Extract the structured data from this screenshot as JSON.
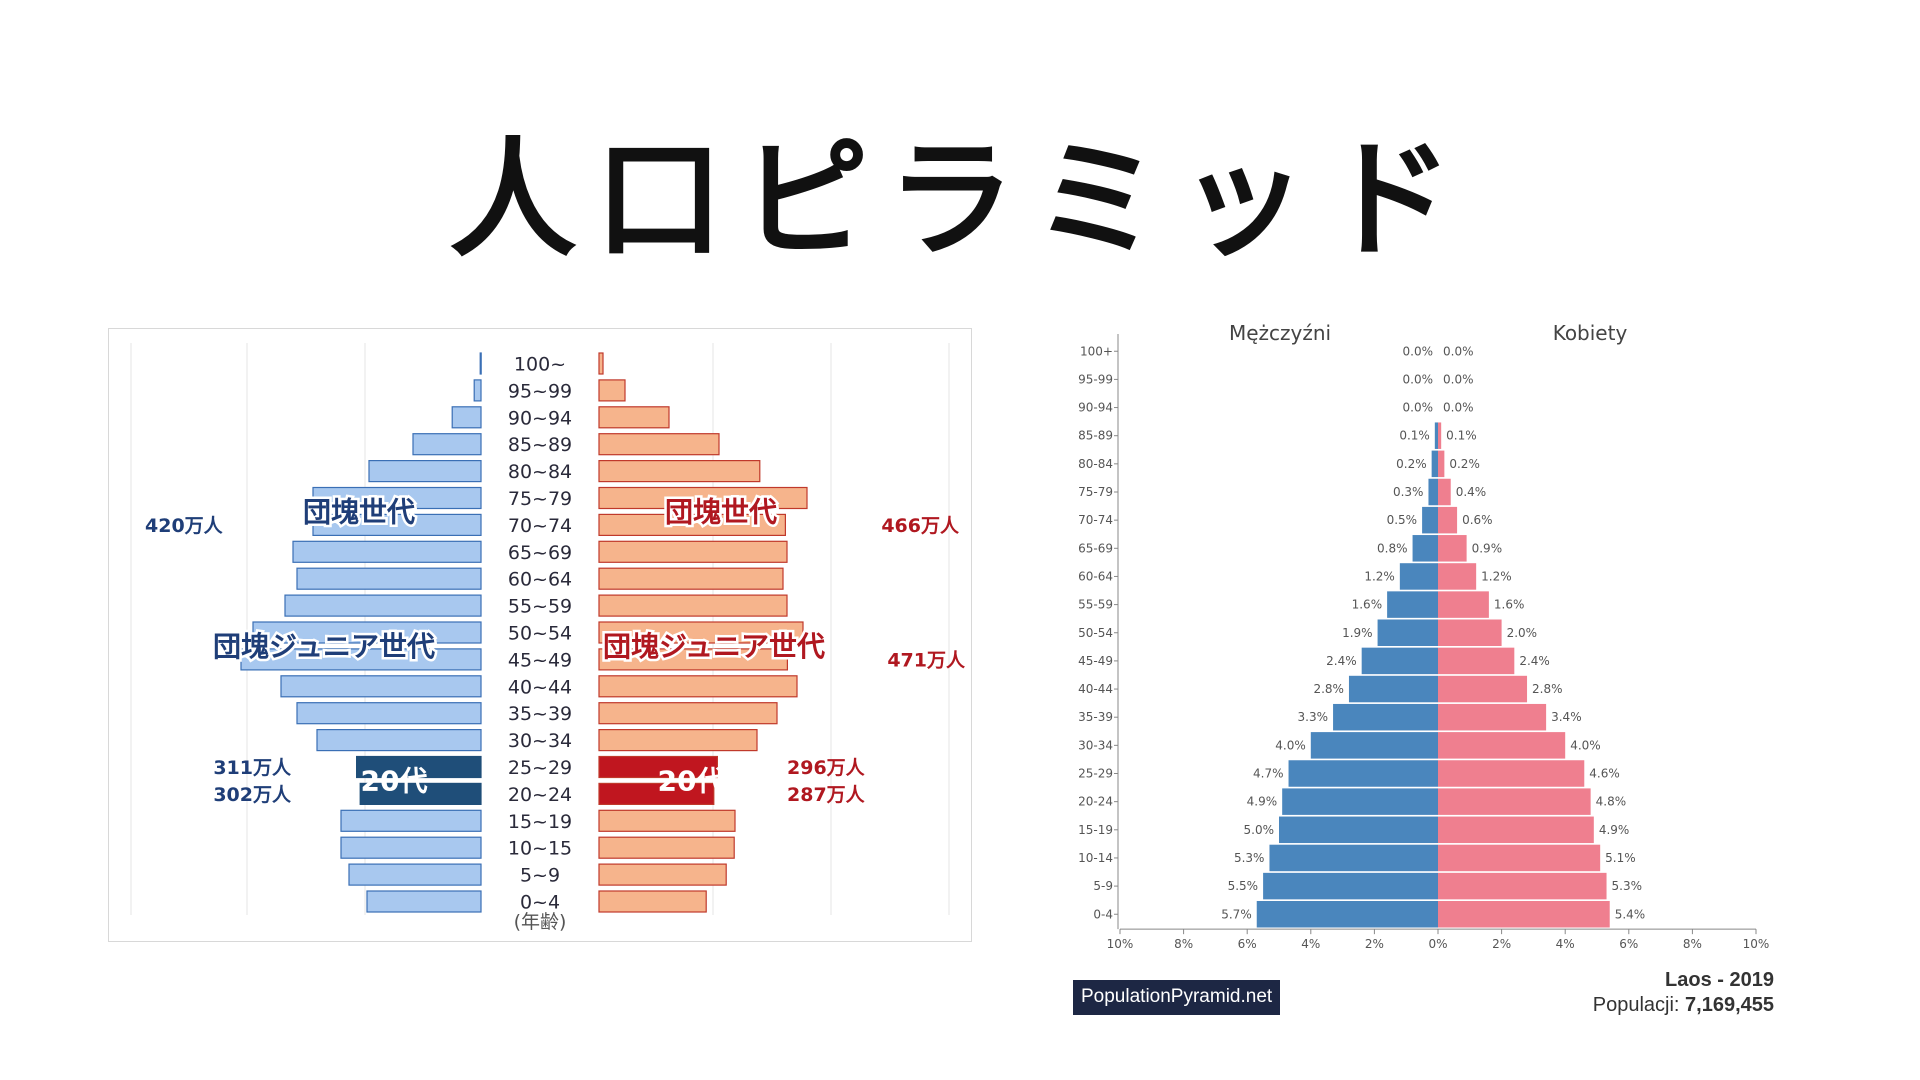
{
  "title": "人口ピラミッド",
  "chart_data": [
    {
      "type": "bar",
      "orientation": "horizontal",
      "layout": "population-pyramid",
      "xlabel": "(年齢)",
      "categories": [
        "100~",
        "95~99",
        "90~94",
        "85~89",
        "80~84",
        "75~79",
        "70~74",
        "65~69",
        "60~64",
        "55~59",
        "50~54",
        "45~49",
        "40~44",
        "35~39",
        "30~34",
        "25~29",
        "20~24",
        "15~19",
        "10~15",
        "5~9",
        "0~4"
      ],
      "series": [
        {
          "values": [
            2,
            17,
            72,
            170,
            280,
            420,
            420,
            470,
            460,
            490,
            570,
            600,
            500,
            460,
            410,
            311,
            302,
            350,
            350,
            330,
            285
          ]
        },
        {
          "values": [
            10,
            65,
            175,
            300,
            402,
            520,
            466,
            470,
            460,
            470,
            510,
            471,
            495,
            445,
            395,
            296,
            287,
            340,
            338,
            318,
            268
          ]
        }
      ],
      "colors": {
        "left": "#a8c8ef",
        "left_highlight": "#1f4e79",
        "right": "#f6b48c",
        "right_highlight": "#c0161f",
        "edge_left": "#3a6fb5",
        "edge_right": "#c0392b"
      },
      "highlight_categories": [
        "25~29",
        "20~24"
      ],
      "annotations": [
        {
          "text": "団塊世代",
          "side": "left",
          "rows": [
            "75~79",
            "70~74"
          ]
        },
        {
          "text": "団塊世代",
          "side": "right",
          "rows": [
            "75~79",
            "70~74"
          ]
        },
        {
          "text": "団塊ジュニア世代",
          "side": "left",
          "rows": [
            "50~54",
            "45~49"
          ]
        },
        {
          "text": "団塊ジュニア世代",
          "side": "right",
          "rows": [
            "50~54",
            "45~49"
          ]
        },
        {
          "text": "20代",
          "side": "left",
          "rows": [
            "25~29",
            "20~24"
          ]
        },
        {
          "text": "20代",
          "side": "right",
          "rows": [
            "25~29",
            "20~24"
          ]
        }
      ],
      "value_labels": [
        {
          "text": "420万人",
          "side": "left",
          "row": "70~74"
        },
        {
          "text": "466万人",
          "side": "right",
          "row": "70~74"
        },
        {
          "text": "471万人",
          "side": "right",
          "row": "45~49"
        },
        {
          "text": "311万人",
          "side": "left",
          "row": "25~29"
        },
        {
          "text": "302万人",
          "side": "left",
          "row": "20~24"
        },
        {
          "text": "296万人",
          "side": "right",
          "row": "25~29"
        },
        {
          "text": "287万人",
          "side": "right",
          "row": "20~24"
        }
      ]
    },
    {
      "type": "bar",
      "orientation": "horizontal",
      "layout": "population-pyramid",
      "categories": [
        "100+",
        "95-99",
        "90-94",
        "85-89",
        "80-84",
        "75-79",
        "70-74",
        "65-69",
        "60-64",
        "55-59",
        "50-54",
        "45-49",
        "40-44",
        "35-39",
        "30-34",
        "25-29",
        "20-24",
        "15-19",
        "10-14",
        "5-9",
        "0-4"
      ],
      "series": [
        {
          "name": "Mężczyźni",
          "values": [
            0.0,
            0.0,
            0.0,
            0.1,
            0.2,
            0.3,
            0.5,
            0.8,
            1.2,
            1.6,
            1.9,
            2.4,
            2.8,
            3.3,
            4.0,
            4.7,
            4.9,
            5.0,
            5.3,
            5.5,
            5.7
          ],
          "color": "#4a86bd"
        },
        {
          "name": "Kobiety",
          "values": [
            0.0,
            0.0,
            0.0,
            0.1,
            0.2,
            0.4,
            0.6,
            0.9,
            1.2,
            1.6,
            2.0,
            2.4,
            2.8,
            3.4,
            4.0,
            4.6,
            4.8,
            4.9,
            5.1,
            5.3,
            5.4
          ],
          "color": "#ef7f8f"
        }
      ],
      "value_labels_left": [
        "0.0%",
        "0.0%",
        "0.0%",
        "0.1%",
        "0.2%",
        "0.3%",
        "0.5%",
        "0.8%",
        "1.2%",
        "1.6%",
        "1.9%",
        "2.4%",
        "2.8%",
        "3.3%",
        "4.0%",
        "4.7%",
        "4.9%",
        "5.0%",
        "5.3%",
        "5.5%",
        "5.7%"
      ],
      "value_labels_right": [
        "0.0%",
        "0.0%",
        "0.0%",
        "0.1%",
        "0.2%",
        "0.4%",
        "0.6%",
        "0.9%",
        "1.2%",
        "1.6%",
        "2.0%",
        "2.4%",
        "2.8%",
        "3.4%",
        "4.0%",
        "4.6%",
        "4.8%",
        "4.9%",
        "5.1%",
        "5.3%",
        "5.4%"
      ],
      "xlim": [
        -10,
        10
      ],
      "x_ticks": [
        -10,
        -8,
        -6,
        -4,
        -2,
        0,
        2,
        4,
        6,
        8,
        10
      ],
      "x_tick_labels": [
        "10%",
        "8%",
        "6%",
        "4%",
        "2%",
        "0%",
        "2%",
        "4%",
        "6%",
        "8%",
        "10%"
      ],
      "grid": false,
      "country": "Laos - 2019",
      "population_label": "Populacji:",
      "population": "7,169,455",
      "source": "PopulationPyramid.net"
    }
  ]
}
